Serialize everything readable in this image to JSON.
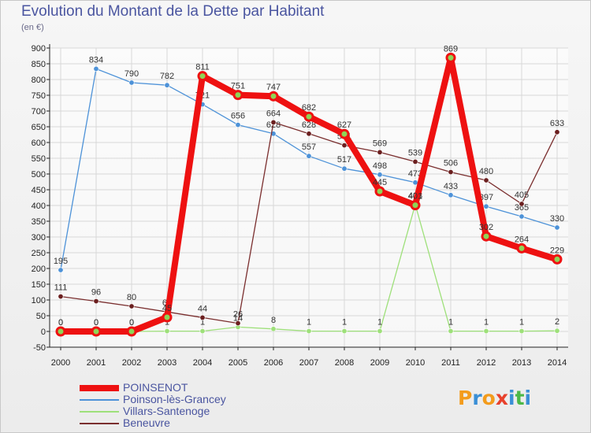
{
  "header": {
    "title": "Evolution du Montant de la Dette par Habitant",
    "subtitle": "(en €)"
  },
  "logo": {
    "text": "Proxiti",
    "letter_colors": [
      "#f39c1d",
      "#3a8fd6",
      "#f39c1d",
      "#e8412c",
      "#3a8fd6",
      "#4cb848",
      "#3a8fd6"
    ]
  },
  "colors": {
    "axis": "#222222",
    "grid": "#d8d8d8",
    "tick_text": "#222222",
    "data_label_text": "#333333"
  },
  "chart_data": {
    "type": "line",
    "title": "Evolution du Montant de la Dette par Habitant",
    "subtitle": "(en €)",
    "x": [
      "2000",
      "2001",
      "2002",
      "2003",
      "2004",
      "2005",
      "2006",
      "2007",
      "2008",
      "2009",
      "2010",
      "2011",
      "2012",
      "2013",
      "2014"
    ],
    "yticks": [
      -50,
      0,
      50,
      100,
      150,
      200,
      250,
      300,
      350,
      400,
      450,
      500,
      550,
      600,
      650,
      700,
      750,
      800,
      850,
      900
    ],
    "ylim": [
      -50,
      900
    ],
    "grid": true,
    "legend_position": "bottom-left",
    "series": [
      {
        "name": "Poinson-lès-Grancey",
        "color": "#4d92d8",
        "marker_fill": "#4d92d8",
        "values": [
          195,
          834,
          790,
          782,
          721,
          656,
          628,
          557,
          517,
          498,
          473,
          433,
          397,
          365,
          330
        ],
        "labels": [
          "195",
          "834",
          "790",
          "782",
          "721",
          "656",
          "628",
          "557",
          "517",
          "498",
          "473",
          "433",
          "397",
          "365",
          "330"
        ]
      },
      {
        "name": "Villars-Santenoge",
        "color": "#9ee07a",
        "marker_fill": "#9ee07a",
        "values": [
          0,
          0,
          0,
          1,
          1,
          14,
          8,
          1,
          1,
          1,
          403,
          1,
          1,
          1,
          2
        ],
        "labels": [
          "0",
          "0",
          "0",
          "1",
          "1",
          "14",
          "8",
          "1",
          "1",
          "1",
          "403",
          "1",
          "1",
          "1",
          "2"
        ]
      },
      {
        "name": "Beneuvre",
        "color": "#7a2e2e",
        "marker_fill": "#6b1f1f",
        "values": [
          111,
          96,
          80,
          62,
          44,
          26,
          664,
          628,
          591,
          569,
          539,
          506,
          480,
          405,
          633
        ],
        "labels": [
          "111",
          "96",
          "80",
          "62",
          "44",
          "26",
          "664",
          "628",
          "591",
          "569",
          "539",
          "506",
          "480",
          "405",
          "633"
        ]
      },
      {
        "name": "POINSENOT",
        "color": "#ee1111",
        "marker_fill": "#8fd456",
        "values": [
          0,
          0,
          0,
          45,
          811,
          751,
          747,
          682,
          627,
          445,
          401,
          869,
          302,
          264,
          229
        ],
        "labels": [
          "0",
          "0",
          "0",
          "45",
          "811",
          "751",
          "747",
          "682",
          "627",
          "445",
          "401",
          "869",
          "302",
          "264",
          "229"
        ]
      }
    ],
    "legend": [
      {
        "name": "POINSENOT",
        "color": "#ee1111"
      },
      {
        "name": "Poinson-lès-Grancey",
        "color": "#4d92d8"
      },
      {
        "name": "Villars-Santenoge",
        "color": "#9ee07a"
      },
      {
        "name": "Beneuvre",
        "color": "#7a2e2e"
      }
    ]
  }
}
